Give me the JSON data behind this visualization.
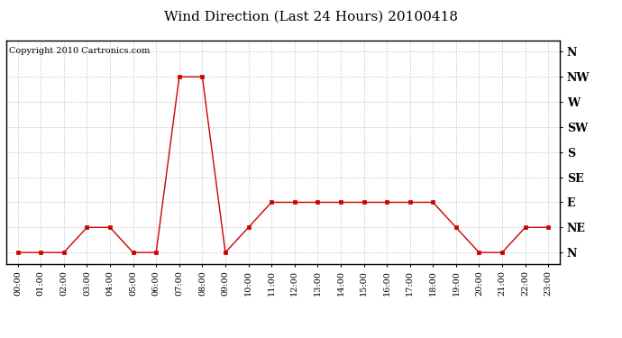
{
  "title": "Wind Direction (Last 24 Hours) 20100418",
  "copyright_text": "Copyright 2010 Cartronics.com",
  "line_color": "#cc0000",
  "bg_color": "#ffffff",
  "grid_color": "#cccccc",
  "x_labels": [
    "00:00",
    "01:00",
    "02:00",
    "03:00",
    "04:00",
    "05:00",
    "06:00",
    "07:00",
    "08:00",
    "09:00",
    "10:00",
    "11:00",
    "12:00",
    "13:00",
    "14:00",
    "15:00",
    "16:00",
    "17:00",
    "18:00",
    "19:00",
    "20:00",
    "21:00",
    "22:00",
    "23:00"
  ],
  "y_labels": [
    "N",
    "NE",
    "E",
    "SE",
    "S",
    "SW",
    "W",
    "NW",
    "N"
  ],
  "y_values": [
    0,
    45,
    90,
    135,
    180,
    225,
    270,
    315,
    360
  ],
  "data_hours": [
    0,
    1,
    2,
    3,
    4,
    5,
    6,
    7,
    8,
    9,
    10,
    11,
    12,
    13,
    14,
    15,
    16,
    17,
    18,
    19,
    20,
    21,
    22,
    23
  ],
  "data_values": [
    0,
    0,
    0,
    45,
    45,
    0,
    0,
    315,
    315,
    0,
    45,
    90,
    90,
    90,
    90,
    90,
    90,
    90,
    90,
    45,
    0,
    0,
    45,
    45
  ],
  "title_fontsize": 11,
  "copyright_fontsize": 7,
  "tick_fontsize": 7,
  "y_tick_fontsize": 9
}
